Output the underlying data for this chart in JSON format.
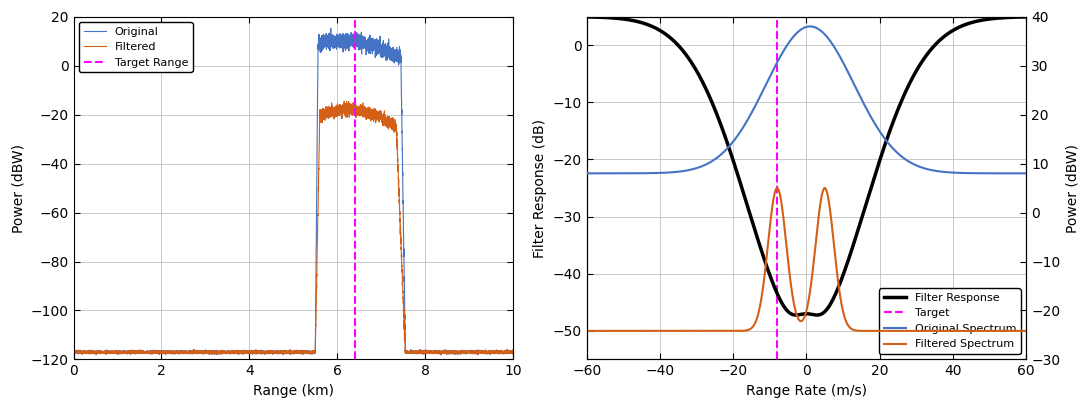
{
  "fig_width": 10.91,
  "fig_height": 4.09,
  "dpi": 100,
  "ax1": {
    "xlim": [
      0,
      10
    ],
    "ylim": [
      -120,
      20
    ],
    "xlabel": "Range (km)",
    "ylabel": "Power (dBW)",
    "xticks": [
      0,
      2,
      4,
      6,
      8,
      10
    ],
    "yticks": [
      -120,
      -100,
      -80,
      -60,
      -40,
      -20,
      0,
      20
    ],
    "target_range": 6.4,
    "noise_floor": -117,
    "signal_start": 5.5,
    "signal_end": 7.55,
    "signal_peak_y": 10,
    "filtered_peak_y": -20,
    "original_color": "#4472C4",
    "filtered_color": "#D45F17",
    "target_color": "#FF00FF"
  },
  "ax2": {
    "xlim": [
      -60,
      60
    ],
    "ylim_left": [
      -55,
      5
    ],
    "ylim_right": [
      -30,
      40
    ],
    "xlabel": "Range Rate (m/s)",
    "ylabel_left": "Filter Response (dB)",
    "ylabel_right": "Power (dBW)",
    "xticks": [
      -60,
      -40,
      -20,
      0,
      20,
      40,
      60
    ],
    "yticks_left": [
      -50,
      -40,
      -30,
      -20,
      -10,
      0
    ],
    "yticks_right": [
      -30,
      -20,
      -10,
      0,
      10,
      20,
      30,
      40
    ],
    "target_doppler": -8,
    "filter_color": "#000000",
    "target_color": "#FF00FF",
    "original_spectrum_color": "#4472C4",
    "filtered_spectrum_color": "#D45F17"
  }
}
